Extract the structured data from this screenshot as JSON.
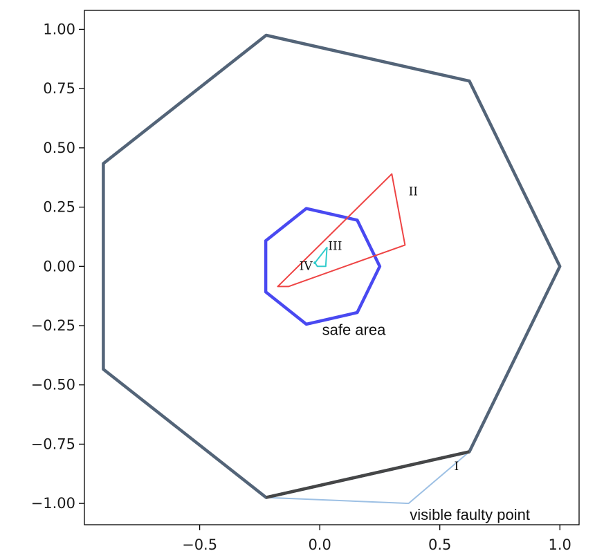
{
  "chart_data": {
    "type": "line",
    "title": "",
    "xlabel": "",
    "ylabel": "",
    "xlim": [
      -0.98,
      1.08
    ],
    "ylim": [
      -1.09,
      1.08
    ],
    "x_ticks": [
      -0.5,
      0.0,
      0.5,
      1.0
    ],
    "x_tick_labels": [
      "−0.5",
      "0.0",
      "0.5",
      "1.0"
    ],
    "y_ticks": [
      -1.0,
      -0.75,
      -0.5,
      -0.25,
      0.0,
      0.25,
      0.5,
      0.75,
      1.0
    ],
    "y_tick_labels": [
      "−1.00",
      "−0.75",
      "−0.50",
      "−0.25",
      "0.00",
      "0.25",
      "0.50",
      "0.75",
      "1.00"
    ],
    "grid": false,
    "series": [
      {
        "key": "outer-heptagon",
        "color": "#536478",
        "closed": true,
        "x": [
          1.0,
          0.623,
          -0.223,
          -0.901,
          -0.901,
          -0.223,
          0.623
        ],
        "y": [
          0.0,
          0.782,
          0.975,
          0.434,
          -0.434,
          -0.975,
          -0.782
        ]
      },
      {
        "key": "safe-area-heptagon",
        "color": "#3f3ff0",
        "closed": true,
        "x": [
          0.25,
          0.156,
          -0.056,
          -0.225,
          -0.225,
          -0.056,
          0.156
        ],
        "y": [
          0.0,
          0.195,
          0.244,
          0.108,
          -0.108,
          -0.244,
          -0.195
        ]
      },
      {
        "key": "triangle-II",
        "color": "#ee4444",
        "closed": true,
        "x": [
          0.3,
          0.355,
          -0.13,
          -0.175
        ],
        "y": [
          0.39,
          0.09,
          -0.085,
          -0.085
        ]
      },
      {
        "key": "triangle-III",
        "color": "#33cccc",
        "closed": true,
        "x": [
          0.03,
          0.025,
          -0.01,
          -0.02
        ],
        "y": [
          0.08,
          0.0,
          0.0,
          0.015
        ]
      },
      {
        "key": "faulty-triangle-I",
        "color": "#9dc0e4",
        "closed": false,
        "x": [
          -0.223,
          0.37,
          0.623
        ],
        "y": [
          -0.975,
          -1.0,
          -0.782
        ]
      },
      {
        "key": "highlighted-edge",
        "color": "#444444",
        "closed": false,
        "x": [
          -0.223,
          0.623
        ],
        "y": [
          -0.975,
          -0.782
        ]
      }
    ],
    "annotations": [
      {
        "key": "label-II",
        "text": "II",
        "x": 0.37,
        "y": 0.3
      },
      {
        "key": "label-III",
        "text": "III",
        "x": 0.035,
        "y": 0.07
      },
      {
        "key": "label-IV",
        "text": "IV",
        "x": -0.085,
        "y": -0.015
      },
      {
        "key": "label-I",
        "text": "I",
        "x": 0.56,
        "y": -0.86
      },
      {
        "key": "label-safe-area",
        "text": "safe area",
        "x": 0.01,
        "y": -0.29
      },
      {
        "key": "label-visible-faulty-point",
        "text": "visible faulty point",
        "x": 0.375,
        "y": -1.07
      }
    ]
  }
}
